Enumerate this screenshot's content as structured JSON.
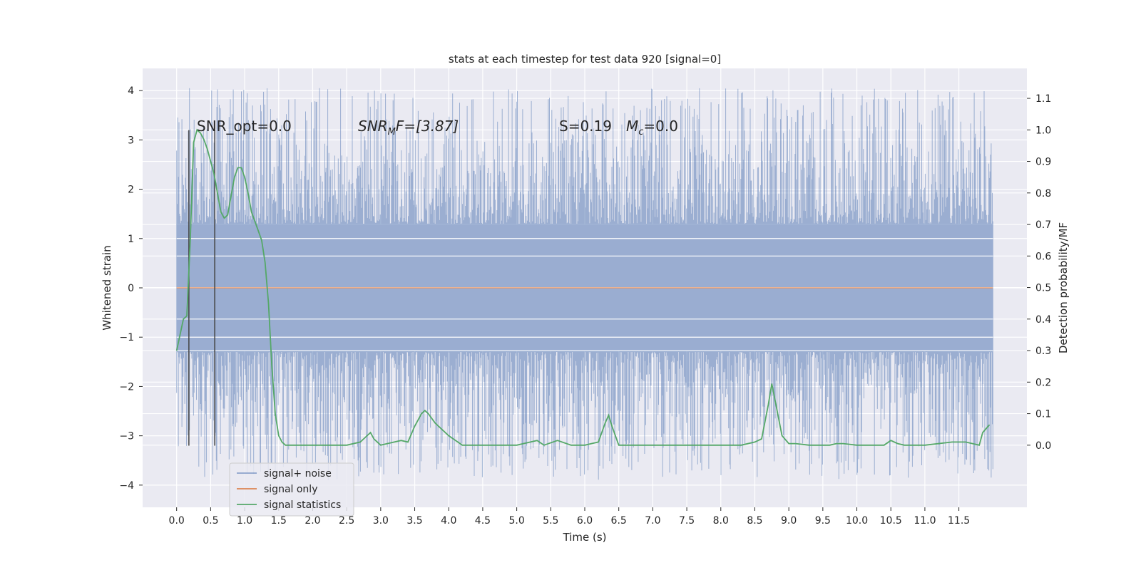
{
  "chart_data": {
    "type": "line",
    "title": "stats at each timestep for test data 920 [signal=0]",
    "xlabel": "Time (s)",
    "ylabel_left": "Whitened strain",
    "ylabel_right": "Detection probability/MF",
    "xlim": [
      -0.5,
      12.5
    ],
    "ylim_left": [
      -4.45,
      4.45
    ],
    "ylim_right": [
      -0.197,
      1.195
    ],
    "x_ticks": [
      "0.0",
      "0.5",
      "1.0",
      "1.5",
      "2.0",
      "2.5",
      "3.0",
      "3.5",
      "4.0",
      "4.5",
      "5.0",
      "5.5",
      "6.0",
      "6.5",
      "7.0",
      "7.5",
      "8.0",
      "8.5",
      "9.0",
      "9.5",
      "10.0",
      "10.5",
      "11.0",
      "11.5"
    ],
    "y_ticks_left": [
      4,
      3,
      2,
      1,
      0,
      -1,
      -2,
      -3,
      -4
    ],
    "y_tick_labels_left": [
      "4",
      "3",
      "2",
      "1",
      "0",
      "−1",
      "−2",
      "−3",
      "−4"
    ],
    "y_ticks_right": [
      1.1,
      1.0,
      0.9,
      0.8,
      0.7,
      0.6,
      0.5,
      0.4,
      0.3,
      0.2,
      0.1,
      0.0
    ],
    "y_tick_labels_right": [
      "1.1",
      "1.0",
      "0.9",
      "0.8",
      "0.7",
      "0.6",
      "0.5",
      "0.4",
      "0.3",
      "0.2",
      "0.1",
      "0.0"
    ],
    "grid": true,
    "legend_position": "bottom-left",
    "series": [
      {
        "name": "signal+ noise",
        "axis": "left",
        "color": "#4c72b0",
        "x_range": [
          0.0,
          12.0
        ],
        "approx_envelope": [
          -3.9,
          4.05
        ]
      },
      {
        "name": "signal only",
        "axis": "left",
        "color": "#dd8452",
        "x": [
          0.0,
          12.0
        ],
        "y": [
          0.0,
          0.0
        ]
      },
      {
        "name": "signal statistics",
        "axis": "right",
        "color": "#55a868",
        "x": [
          0.0,
          0.1,
          0.15,
          0.2,
          0.25,
          0.3,
          0.35,
          0.4,
          0.45,
          0.5,
          0.55,
          0.6,
          0.65,
          0.7,
          0.75,
          0.8,
          0.85,
          0.9,
          0.95,
          1.0,
          1.05,
          1.1,
          1.15,
          1.2,
          1.25,
          1.3,
          1.35,
          1.4,
          1.45,
          1.5,
          1.55,
          1.6,
          1.65,
          1.7,
          1.8,
          2.0,
          2.5,
          2.7,
          2.8,
          2.85,
          2.9,
          2.95,
          3.0,
          3.2,
          3.3,
          3.4,
          3.5,
          3.6,
          3.65,
          3.7,
          3.8,
          4.0,
          4.2,
          4.4,
          5.0,
          5.2,
          5.3,
          5.4,
          5.6,
          5.8,
          6.0,
          6.2,
          6.3,
          6.35,
          6.4,
          6.5,
          6.6,
          7.0,
          7.5,
          8.0,
          8.3,
          8.5,
          8.6,
          8.7,
          8.75,
          8.8,
          8.9,
          9.0,
          9.1,
          9.3,
          9.6,
          9.7,
          9.8,
          10.0,
          10.4,
          10.5,
          10.6,
          10.7,
          11.0,
          11.4,
          11.6,
          11.7,
          11.8,
          11.85,
          11.95
        ],
        "y": [
          0.3,
          0.4,
          0.41,
          0.65,
          0.96,
          1.0,
          0.99,
          0.97,
          0.94,
          0.9,
          0.86,
          0.8,
          0.74,
          0.72,
          0.73,
          0.79,
          0.85,
          0.88,
          0.88,
          0.85,
          0.8,
          0.74,
          0.71,
          0.68,
          0.65,
          0.58,
          0.45,
          0.25,
          0.1,
          0.03,
          0.01,
          0.0,
          0.0,
          0.0,
          0.0,
          0.0,
          0.0,
          0.01,
          0.03,
          0.04,
          0.02,
          0.01,
          0.0,
          0.01,
          0.015,
          0.01,
          0.06,
          0.1,
          0.11,
          0.1,
          0.07,
          0.03,
          0.0,
          0.0,
          0.0,
          0.01,
          0.015,
          0.0,
          0.015,
          0.0,
          0.0,
          0.01,
          0.07,
          0.095,
          0.06,
          0.0,
          0.0,
          0.0,
          0.0,
          0.0,
          0.0,
          0.01,
          0.02,
          0.13,
          0.195,
          0.14,
          0.03,
          0.005,
          0.005,
          0.0,
          0.0,
          0.005,
          0.005,
          0.0,
          0.0,
          0.015,
          0.005,
          0.0,
          0.0,
          0.01,
          0.01,
          0.005,
          0.0,
          0.04,
          0.065
        ]
      }
    ],
    "vertical_markers_x": [
      0.18,
      0.56
    ],
    "annotations": {
      "snr_opt": "SNR_opt=0.0",
      "snr_mf_prefix": "SNR",
      "snr_mf_sub": "M",
      "snr_mf_suffix": "F=[3.87]",
      "s_value": "S=0.19",
      "mc_prefix": "M",
      "mc_sub": "c",
      "mc_suffix": "=0.0"
    }
  }
}
